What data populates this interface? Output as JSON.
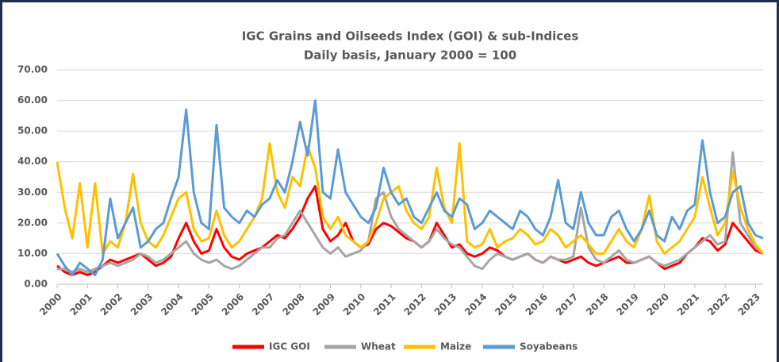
{
  "chart_data": {
    "type": "line",
    "title": "IGC Grains and Oilseeds Index (GOI) & sub-Indices",
    "subtitle": "Daily basis, January 2000 = 100",
    "x": [
      2000,
      2000.25,
      2000.5,
      2000.75,
      2001,
      2001.25,
      2001.5,
      2001.75,
      2002,
      2002.25,
      2002.5,
      2002.75,
      2003,
      2003.25,
      2003.5,
      2003.75,
      2004,
      2004.25,
      2004.5,
      2004.75,
      2005,
      2005.25,
      2005.5,
      2005.75,
      2006,
      2006.25,
      2006.5,
      2006.75,
      2007,
      2007.25,
      2007.5,
      2007.75,
      2008,
      2008.25,
      2008.5,
      2008.75,
      2009,
      2009.25,
      2009.5,
      2009.75,
      2010,
      2010.25,
      2010.5,
      2010.75,
      2011,
      2011.25,
      2011.5,
      2011.75,
      2012,
      2012.25,
      2012.5,
      2012.75,
      2013,
      2013.25,
      2013.5,
      2013.75,
      2014,
      2014.25,
      2014.5,
      2014.75,
      2015,
      2015.25,
      2015.5,
      2015.75,
      2016,
      2016.25,
      2016.5,
      2016.75,
      2017,
      2017.25,
      2017.5,
      2017.75,
      2018,
      2018.25,
      2018.5,
      2018.75,
      2019,
      2019.25,
      2019.5,
      2019.75,
      2020,
      2020.25,
      2020.5,
      2020.75,
      2021,
      2021.25,
      2021.5,
      2021.75,
      2022,
      2022.25,
      2022.5,
      2022.75,
      2023,
      2023.25
    ],
    "series": [
      {
        "name": "IGC GOI",
        "color": "#ff0000",
        "values": [
          6,
          4,
          3,
          4,
          3,
          4,
          6,
          8,
          7,
          8,
          9,
          10,
          8,
          6,
          7,
          9,
          15,
          20,
          14,
          10,
          11,
          18,
          12,
          9,
          8,
          10,
          11,
          12,
          14,
          16,
          15,
          18,
          22,
          28,
          32,
          18,
          14,
          16,
          20,
          14,
          12,
          13,
          18,
          20,
          19,
          17,
          15,
          14,
          12,
          14,
          20,
          16,
          12,
          13,
          10,
          9,
          10,
          12,
          11,
          9,
          8,
          9,
          10,
          8,
          7,
          9,
          8,
          7,
          8,
          9,
          7,
          6,
          7,
          8,
          9,
          7,
          7,
          8,
          9,
          7,
          5,
          6,
          7,
          10,
          12,
          15,
          14,
          11,
          13,
          20,
          17,
          14,
          11,
          10
        ]
      },
      {
        "name": "Wheat",
        "color": "#a5a5a5",
        "values": [
          5,
          5,
          4,
          5,
          4,
          5,
          6,
          7,
          6,
          7,
          8,
          10,
          9,
          7,
          8,
          10,
          12,
          14,
          10,
          8,
          7,
          8,
          6,
          5,
          6,
          8,
          10,
          12,
          12,
          15,
          16,
          20,
          24,
          20,
          16,
          12,
          10,
          12,
          9,
          10,
          11,
          14,
          28,
          30,
          22,
          18,
          16,
          14,
          12,
          14,
          18,
          15,
          13,
          12,
          9,
          6,
          5,
          8,
          10,
          9,
          8,
          9,
          10,
          8,
          7,
          9,
          8,
          8,
          9,
          25,
          12,
          8,
          7,
          9,
          11,
          8,
          7,
          8,
          9,
          7,
          6,
          7,
          8,
          10,
          12,
          14,
          16,
          13,
          14,
          43,
          20,
          16,
          12,
          10
        ]
      },
      {
        "name": "Maize",
        "color": "#ffc000",
        "values": [
          40,
          25,
          15,
          33,
          12,
          33,
          10,
          14,
          12,
          20,
          36,
          20,
          14,
          12,
          16,
          22,
          28,
          30,
          18,
          14,
          15,
          24,
          16,
          12,
          14,
          18,
          22,
          28,
          46,
          30,
          25,
          35,
          32,
          45,
          38,
          22,
          18,
          22,
          16,
          14,
          12,
          14,
          20,
          28,
          30,
          32,
          24,
          20,
          18,
          22,
          38,
          25,
          20,
          46,
          14,
          12,
          13,
          18,
          12,
          14,
          15,
          18,
          16,
          13,
          14,
          18,
          16,
          12,
          14,
          16,
          13,
          10,
          10,
          14,
          18,
          14,
          12,
          18,
          29,
          14,
          10,
          12,
          14,
          18,
          22,
          35,
          25,
          16,
          20,
          37,
          25,
          18,
          13,
          10
        ]
      },
      {
        "name": "Soyabeans",
        "color": "#5b9bd5",
        "values": [
          10,
          6,
          3,
          7,
          5,
          3,
          8,
          28,
          15,
          20,
          25,
          12,
          14,
          18,
          20,
          28,
          35,
          57,
          30,
          20,
          18,
          52,
          25,
          22,
          20,
          24,
          22,
          26,
          28,
          34,
          30,
          40,
          53,
          42,
          60,
          30,
          28,
          44,
          30,
          26,
          22,
          20,
          25,
          38,
          30,
          26,
          28,
          22,
          20,
          25,
          30,
          24,
          22,
          28,
          26,
          18,
          20,
          24,
          22,
          20,
          18,
          24,
          22,
          18,
          16,
          22,
          34,
          20,
          18,
          30,
          20,
          16,
          16,
          22,
          24,
          18,
          14,
          18,
          24,
          16,
          14,
          22,
          18,
          24,
          26,
          47,
          30,
          20,
          22,
          30,
          32,
          20,
          16,
          15
        ]
      }
    ],
    "xlim": [
      2000,
      2023.25
    ],
    "xticks": [
      2000,
      2001,
      2002,
      2003,
      2004,
      2005,
      2006,
      2007,
      2008,
      2009,
      2010,
      2011,
      2012,
      2013,
      2014,
      2015,
      2016,
      2017,
      2018,
      2019,
      2020,
      2021,
      2022,
      2023
    ],
    "ylim": [
      0,
      70
    ],
    "yticks": [
      {
        "value": 0,
        "label": "0.00"
      },
      {
        "value": 10,
        "label": "10.00"
      },
      {
        "value": 20,
        "label": "20.00"
      },
      {
        "value": 30,
        "label": "30.00"
      },
      {
        "value": 40,
        "label": "40.00"
      },
      {
        "value": 50,
        "label": "50.00"
      },
      {
        "value": 60,
        "label": "60.00"
      },
      {
        "value": 70,
        "label": "70.00"
      }
    ],
    "grid": true,
    "legend": "bottom"
  }
}
